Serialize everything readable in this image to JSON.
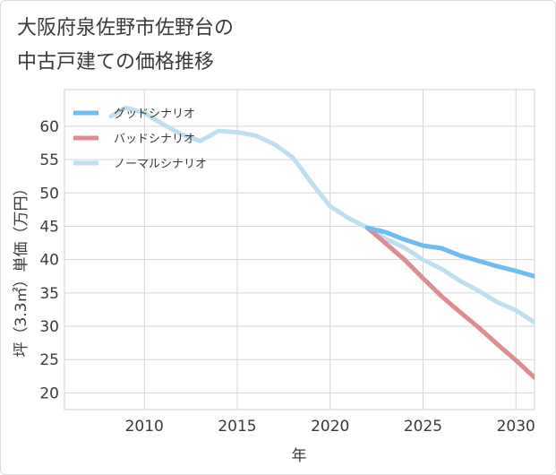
{
  "chart_data": {
    "type": "line",
    "title_lines": [
      "大阪府泉佐野市佐野台の",
      "中古戸建ての価格推移"
    ],
    "xlabel": "年",
    "ylabel": "坪（3.3㎡）単価（万円）",
    "xlim": [
      2005.7,
      2031.0
    ],
    "ylim": [
      17.5,
      65.5
    ],
    "xticks": [
      2010,
      2015,
      2020,
      2025,
      2030
    ],
    "yticks": [
      20,
      25,
      30,
      35,
      40,
      45,
      50,
      55,
      60
    ],
    "grid": true,
    "legend_position": "top-left",
    "series": [
      {
        "name": "グッドシナリオ",
        "color": "#6fbdf0",
        "x": [
          2022,
          2023,
          2024,
          2025,
          2026,
          2027,
          2028,
          2029,
          2030,
          2031
        ],
        "values": [
          44.8,
          44.1,
          43.0,
          42.1,
          41.7,
          40.6,
          39.8,
          39.0,
          38.3,
          37.5
        ]
      },
      {
        "name": "バッドシナリオ",
        "color": "#dd8c92",
        "x": [
          2022,
          2023,
          2024,
          2025,
          2026,
          2027,
          2028,
          2029,
          2030,
          2031
        ],
        "values": [
          44.8,
          42.4,
          40.0,
          37.2,
          34.5,
          32.1,
          29.8,
          27.3,
          24.9,
          22.3
        ]
      },
      {
        "name": "ノーマルシナリオ",
        "color": "#bfdfee",
        "x": [
          2008.2,
          2009,
          2010,
          2011,
          2012,
          2013,
          2014,
          2015,
          2016,
          2017,
          2018,
          2019,
          2020,
          2021,
          2022,
          2023,
          2024,
          2025,
          2026,
          2027,
          2028,
          2029,
          2030,
          2031
        ],
        "values": [
          61.5,
          62.8,
          62.0,
          60.3,
          58.8,
          57.8,
          59.3,
          59.1,
          58.6,
          57.3,
          55.3,
          51.5,
          48.0,
          46.2,
          44.8,
          43.1,
          41.8,
          40.0,
          38.6,
          36.8,
          35.3,
          33.6,
          32.4,
          30.6
        ]
      }
    ]
  }
}
